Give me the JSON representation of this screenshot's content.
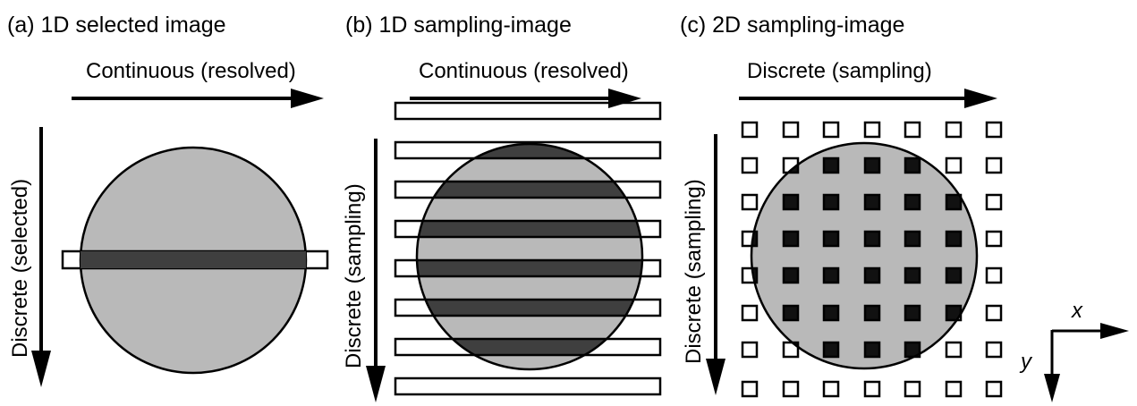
{
  "panels": {
    "a": {
      "title": "(a) 1D selected image",
      "horizontal_label": "Continuous (resolved)",
      "vertical_label": "Discrete (selected)"
    },
    "b": {
      "title": "(b) 1D sampling-image",
      "horizontal_label": "Continuous (resolved)",
      "vertical_label": "Discrete (sampling)"
    },
    "c": {
      "title": "(c) 2D sampling-image",
      "horizontal_label": "Discrete (sampling)",
      "vertical_label": "Discrete (sampling)"
    }
  },
  "coordinate_axes": {
    "x_label": "x",
    "y_label": "y"
  },
  "colors": {
    "circle_fill": "#b9b9b9",
    "sample_fill": "#3f3f3f",
    "outline": "#000000",
    "background": "#ffffff"
  }
}
